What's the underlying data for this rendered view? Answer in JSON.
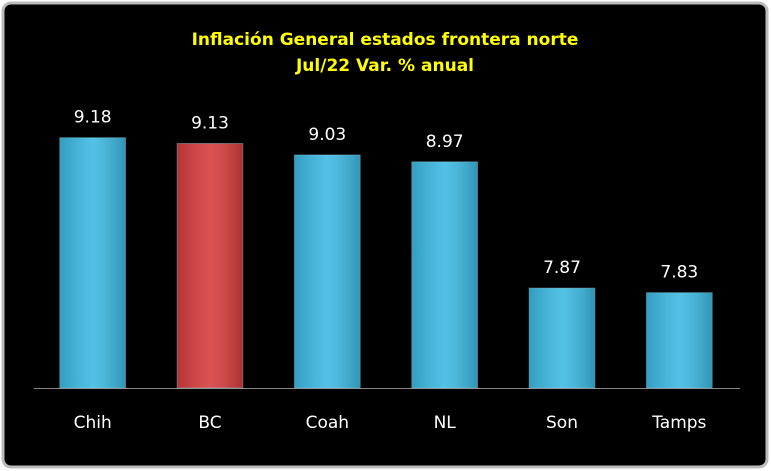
{
  "chart_data": {
    "type": "bar",
    "title": "Inflación General estados frontera norte",
    "subtitle": "Jul/22 Var. % anual",
    "categories": [
      "Chih",
      "BC",
      "Coah",
      "NL",
      "Son",
      "Tamps"
    ],
    "values": [
      9.18,
      9.13,
      9.03,
      8.97,
      7.87,
      7.83
    ],
    "colors": [
      "#3bb9e2",
      "#d63c3c",
      "#3bb9e2",
      "#3bb9e2",
      "#3bb9e2",
      "#3bb9e2"
    ],
    "ylim": [
      7,
      9.5
    ]
  }
}
